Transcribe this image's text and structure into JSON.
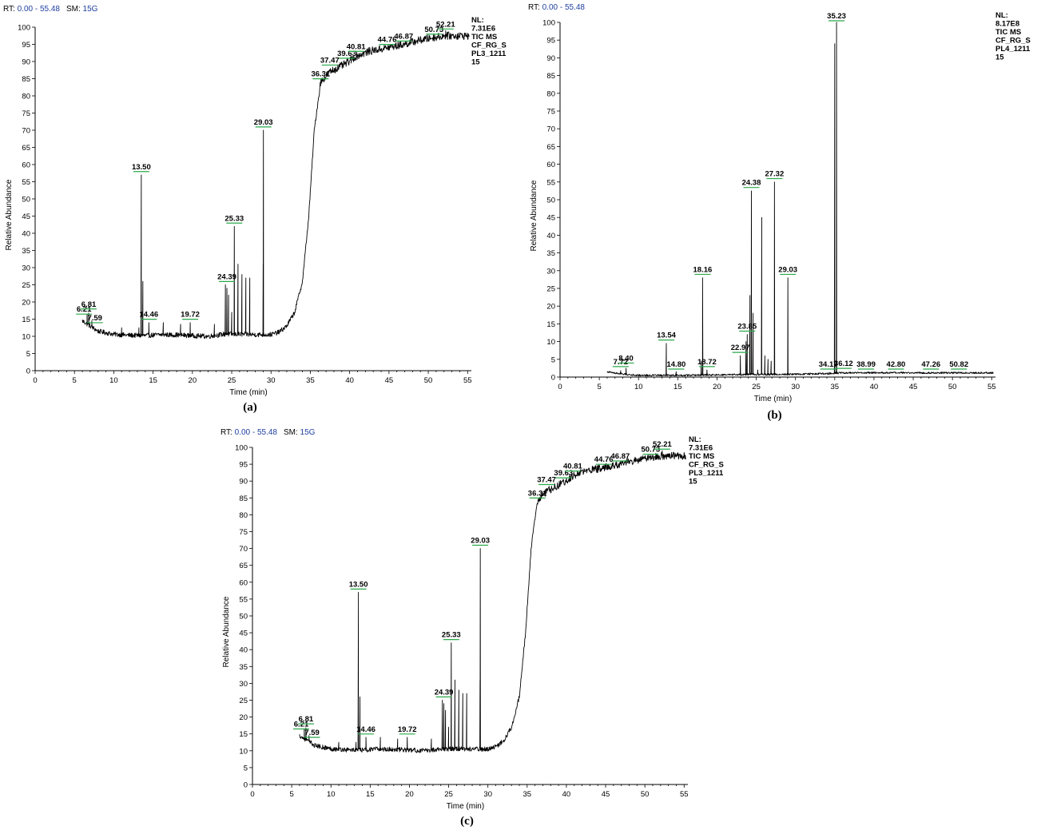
{
  "colors": {
    "axis": "#000000",
    "trace": "#000000",
    "header_value": "#1f3fa0",
    "peak_marker": "#2aa84a"
  },
  "chart_data": [
    {
      "id": "a",
      "type": "line",
      "caption": "(a)",
      "header": {
        "rt_label": "RT:",
        "rt_value": "0.00 - 55.48",
        "sm_label": "SM:",
        "sm_value": "15G"
      },
      "info_lines": [
        "NL:",
        "7.31E6",
        "TIC MS",
        "CF_RG_S",
        "PL3_1211",
        "15"
      ],
      "xlabel": "Time (min)",
      "ylabel": "Relative Abundance",
      "xlim": [
        0,
        55.48
      ],
      "ylim": [
        0,
        100
      ],
      "x_ticks": [
        0,
        5,
        10,
        15,
        20,
        25,
        30,
        35,
        40,
        45,
        50,
        55
      ],
      "y_ticks": [
        0,
        5,
        10,
        15,
        20,
        25,
        30,
        35,
        40,
        45,
        50,
        55,
        60,
        65,
        70,
        75,
        80,
        85,
        90,
        95,
        100
      ],
      "baseline": [
        [
          6.0,
          14.5
        ],
        [
          8.0,
          11.5
        ],
        [
          10.0,
          10.6
        ],
        [
          12.0,
          10.3
        ],
        [
          14.0,
          10.2
        ],
        [
          16.0,
          10.5
        ],
        [
          18.0,
          10.4
        ],
        [
          20.0,
          10.2
        ],
        [
          22.0,
          10.0
        ],
        [
          24.0,
          10.6
        ],
        [
          26.0,
          10.6
        ],
        [
          28.0,
          10.5
        ],
        [
          30.0,
          10.5
        ],
        [
          31.0,
          11.2
        ],
        [
          32.0,
          13.0
        ],
        [
          33.0,
          17.0
        ],
        [
          34.0,
          26.0
        ],
        [
          34.8,
          45.0
        ],
        [
          35.5,
          70.0
        ],
        [
          36.3,
          84.0
        ],
        [
          37.5,
          87.0
        ],
        [
          39.6,
          89.5
        ],
        [
          40.8,
          91.5
        ],
        [
          42.5,
          93.0
        ],
        [
          44.8,
          94.0
        ],
        [
          46.9,
          95.0
        ],
        [
          48.5,
          96.0
        ],
        [
          50.7,
          97.0
        ],
        [
          52.2,
          97.5
        ],
        [
          55.0,
          97.5
        ]
      ],
      "peaks": [
        [
          6.6,
          16.5
        ],
        [
          6.8,
          16.8
        ],
        [
          7.2,
          14.5
        ],
        [
          11.0,
          12.5
        ],
        [
          13.2,
          12.5
        ],
        [
          13.5,
          57.0
        ],
        [
          13.7,
          26.0
        ],
        [
          14.46,
          14.0
        ],
        [
          16.3,
          14.0
        ],
        [
          18.5,
          13.5
        ],
        [
          19.72,
          14.0
        ],
        [
          22.8,
          13.5
        ],
        [
          24.2,
          25.0
        ],
        [
          24.39,
          24.0
        ],
        [
          24.6,
          22.0
        ],
        [
          25.0,
          17.0
        ],
        [
          25.33,
          42.0
        ],
        [
          25.8,
          31.0
        ],
        [
          26.3,
          28.0
        ],
        [
          26.8,
          27.0
        ],
        [
          27.3,
          27.0
        ],
        [
          29.0,
          31.0
        ],
        [
          29.03,
          70.0
        ],
        [
          52.21,
          99.0
        ]
      ],
      "peak_labels": [
        {
          "x": 6.21,
          "y": 16.0,
          "text": "6.21"
        },
        {
          "x": 6.81,
          "y": 17.5,
          "text": "6.81"
        },
        {
          "x": 7.59,
          "y": 13.5,
          "text": "7.59"
        },
        {
          "x": 13.5,
          "y": 57.5,
          "text": "13.50"
        },
        {
          "x": 14.46,
          "y": 14.5,
          "text": "14.46"
        },
        {
          "x": 19.72,
          "y": 14.5,
          "text": "19.72"
        },
        {
          "x": 24.39,
          "y": 25.5,
          "text": "24.39"
        },
        {
          "x": 25.33,
          "y": 42.5,
          "text": "25.33"
        },
        {
          "x": 29.03,
          "y": 70.5,
          "text": "29.03"
        },
        {
          "x": 36.31,
          "y": 84.5,
          "text": "36.31"
        },
        {
          "x": 37.47,
          "y": 88.5,
          "text": "37.47"
        },
        {
          "x": 39.63,
          "y": 90.5,
          "text": "39.63"
        },
        {
          "x": 40.81,
          "y": 92.5,
          "text": "40.81"
        },
        {
          "x": 44.76,
          "y": 94.5,
          "text": "44.76"
        },
        {
          "x": 46.87,
          "y": 95.5,
          "text": "46.87"
        },
        {
          "x": 50.73,
          "y": 97.5,
          "text": "50.73"
        },
        {
          "x": 52.21,
          "y": 99.0,
          "text": "52.21"
        }
      ]
    },
    {
      "id": "b",
      "type": "line",
      "caption": "(b)",
      "header": {
        "rt_label": "RT:",
        "rt_value": "0.00 - 55.48",
        "sm_label": "",
        "sm_value": ""
      },
      "info_lines": [
        "NL:",
        "8.17E8",
        "TIC MS",
        "CF_RG_S",
        "PL4_1211",
        "15"
      ],
      "xlabel": "Time (min)",
      "ylabel": "Relative Abundance",
      "xlim": [
        0,
        55.48
      ],
      "ylim": [
        0,
        100
      ],
      "x_ticks": [
        0,
        5,
        10,
        15,
        20,
        25,
        30,
        35,
        40,
        45,
        50,
        55
      ],
      "y_ticks": [
        0,
        5,
        10,
        15,
        20,
        25,
        30,
        35,
        40,
        45,
        50,
        55,
        60,
        65,
        70,
        75,
        80,
        85,
        90,
        95,
        100
      ],
      "baseline": [
        [
          6.0,
          1.5
        ],
        [
          8.0,
          0.8
        ],
        [
          10.0,
          0.5
        ],
        [
          15.0,
          0.5
        ],
        [
          20.0,
          0.6
        ],
        [
          25.0,
          0.7
        ],
        [
          30.0,
          0.8
        ],
        [
          34.0,
          1.0
        ],
        [
          36.0,
          1.2
        ],
        [
          40.0,
          1.2
        ],
        [
          45.0,
          1.2
        ],
        [
          50.0,
          1.2
        ],
        [
          55.0,
          1.2
        ]
      ],
      "peaks": [
        [
          7.72,
          1.8
        ],
        [
          8.4,
          2.5
        ],
        [
          13.54,
          9.5
        ],
        [
          14.8,
          1.5
        ],
        [
          18.0,
          4.5
        ],
        [
          18.16,
          28.0
        ],
        [
          18.72,
          2.0
        ],
        [
          22.97,
          6.0
        ],
        [
          23.7,
          10.0
        ],
        [
          23.85,
          12.0
        ],
        [
          24.2,
          23.0
        ],
        [
          24.38,
          52.5
        ],
        [
          24.6,
          18.0
        ],
        [
          25.2,
          2.0
        ],
        [
          25.7,
          45.0
        ],
        [
          26.1,
          6.0
        ],
        [
          26.5,
          5.0
        ],
        [
          26.9,
          4.5
        ],
        [
          27.32,
          55.0
        ],
        [
          29.03,
          28.0
        ],
        [
          35.0,
          94.0
        ],
        [
          35.23,
          100.0
        ]
      ],
      "peak_labels": [
        {
          "x": 7.72,
          "y": 2.5,
          "text": "7.72"
        },
        {
          "x": 8.4,
          "y": 3.5,
          "text": "8.40"
        },
        {
          "x": 13.54,
          "y": 10.0,
          "text": "13.54"
        },
        {
          "x": 14.8,
          "y": 1.8,
          "text": "14.80"
        },
        {
          "x": 18.16,
          "y": 28.5,
          "text": "18.16"
        },
        {
          "x": 18.72,
          "y": 2.5,
          "text": "18.72"
        },
        {
          "x": 22.97,
          "y": 6.5,
          "text": "22.97"
        },
        {
          "x": 23.85,
          "y": 12.5,
          "text": "23.85"
        },
        {
          "x": 24.38,
          "y": 53.0,
          "text": "24.38"
        },
        {
          "x": 27.32,
          "y": 55.5,
          "text": "27.32"
        },
        {
          "x": 29.03,
          "y": 28.5,
          "text": "29.03"
        },
        {
          "x": 34.17,
          "y": 1.8,
          "text": "34.17"
        },
        {
          "x": 35.23,
          "y": 100.0,
          "text": "35.23"
        },
        {
          "x": 36.12,
          "y": 2.0,
          "text": "36.12"
        },
        {
          "x": 38.99,
          "y": 1.8,
          "text": "38.99"
        },
        {
          "x": 42.8,
          "y": 1.8,
          "text": "42.80"
        },
        {
          "x": 47.26,
          "y": 1.8,
          "text": "47.26"
        },
        {
          "x": 50.82,
          "y": 1.8,
          "text": "50.82"
        }
      ]
    },
    {
      "id": "c",
      "type": "line",
      "caption": "(c)",
      "header": {
        "rt_label": "RT:",
        "rt_value": "0.00 - 55.48",
        "sm_label": "SM:",
        "sm_value": "15G"
      },
      "info_lines": [
        "NL:",
        "7.31E6",
        "TIC MS",
        "CF_RG_S",
        "PL3_1211",
        "15"
      ],
      "xlabel": "Time (min)",
      "ylabel": "Relative Abundance",
      "xlim": [
        0,
        55.48
      ],
      "ylim": [
        0,
        100
      ],
      "x_ticks": [
        0,
        5,
        10,
        15,
        20,
        25,
        30,
        35,
        40,
        45,
        50,
        55
      ],
      "y_ticks": [
        0,
        5,
        10,
        15,
        20,
        25,
        30,
        35,
        40,
        45,
        50,
        55,
        60,
        65,
        70,
        75,
        80,
        85,
        90,
        95,
        100
      ],
      "baseline": [
        [
          6.0,
          14.5
        ],
        [
          8.0,
          11.5
        ],
        [
          10.0,
          10.6
        ],
        [
          12.0,
          10.3
        ],
        [
          14.0,
          10.2
        ],
        [
          16.0,
          10.5
        ],
        [
          18.0,
          10.4
        ],
        [
          20.0,
          10.2
        ],
        [
          22.0,
          10.0
        ],
        [
          24.0,
          10.6
        ],
        [
          26.0,
          10.6
        ],
        [
          28.0,
          10.5
        ],
        [
          30.0,
          10.5
        ],
        [
          31.0,
          11.2
        ],
        [
          32.0,
          13.0
        ],
        [
          33.0,
          17.0
        ],
        [
          34.0,
          26.0
        ],
        [
          34.8,
          45.0
        ],
        [
          35.5,
          70.0
        ],
        [
          36.3,
          84.0
        ],
        [
          37.5,
          87.0
        ],
        [
          39.6,
          89.5
        ],
        [
          40.8,
          91.5
        ],
        [
          42.5,
          93.0
        ],
        [
          44.8,
          94.0
        ],
        [
          46.9,
          95.0
        ],
        [
          48.5,
          96.0
        ],
        [
          50.7,
          97.0
        ],
        [
          52.2,
          97.5
        ],
        [
          55.0,
          97.5
        ]
      ],
      "peaks": [
        [
          6.6,
          16.5
        ],
        [
          6.8,
          16.8
        ],
        [
          7.2,
          14.5
        ],
        [
          11.0,
          12.5
        ],
        [
          13.2,
          12.5
        ],
        [
          13.5,
          57.0
        ],
        [
          13.7,
          26.0
        ],
        [
          14.46,
          14.0
        ],
        [
          16.3,
          14.0
        ],
        [
          18.5,
          13.5
        ],
        [
          19.72,
          14.0
        ],
        [
          22.8,
          13.5
        ],
        [
          24.2,
          25.0
        ],
        [
          24.39,
          24.0
        ],
        [
          24.6,
          22.0
        ],
        [
          25.0,
          17.0
        ],
        [
          25.33,
          42.0
        ],
        [
          25.8,
          31.0
        ],
        [
          26.3,
          28.0
        ],
        [
          26.8,
          27.0
        ],
        [
          27.3,
          27.0
        ],
        [
          29.0,
          31.0
        ],
        [
          29.03,
          70.0
        ],
        [
          52.21,
          99.0
        ]
      ],
      "peak_labels": [
        {
          "x": 6.21,
          "y": 16.0,
          "text": "6.21"
        },
        {
          "x": 6.81,
          "y": 17.5,
          "text": "6.81"
        },
        {
          "x": 7.59,
          "y": 13.5,
          "text": "7.59"
        },
        {
          "x": 13.5,
          "y": 57.5,
          "text": "13.50"
        },
        {
          "x": 14.46,
          "y": 14.5,
          "text": "14.46"
        },
        {
          "x": 19.72,
          "y": 14.5,
          "text": "19.72"
        },
        {
          "x": 24.39,
          "y": 25.5,
          "text": "24.39"
        },
        {
          "x": 25.33,
          "y": 42.5,
          "text": "25.33"
        },
        {
          "x": 29.03,
          "y": 70.5,
          "text": "29.03"
        },
        {
          "x": 36.31,
          "y": 84.5,
          "text": "36.31"
        },
        {
          "x": 37.47,
          "y": 88.5,
          "text": "37.47"
        },
        {
          "x": 39.63,
          "y": 90.5,
          "text": "39.63"
        },
        {
          "x": 40.81,
          "y": 92.5,
          "text": "40.81"
        },
        {
          "x": 44.76,
          "y": 94.5,
          "text": "44.76"
        },
        {
          "x": 46.87,
          "y": 95.5,
          "text": "46.87"
        },
        {
          "x": 50.73,
          "y": 97.5,
          "text": "50.73"
        },
        {
          "x": 52.21,
          "y": 99.0,
          "text": "52.21"
        }
      ]
    }
  ]
}
